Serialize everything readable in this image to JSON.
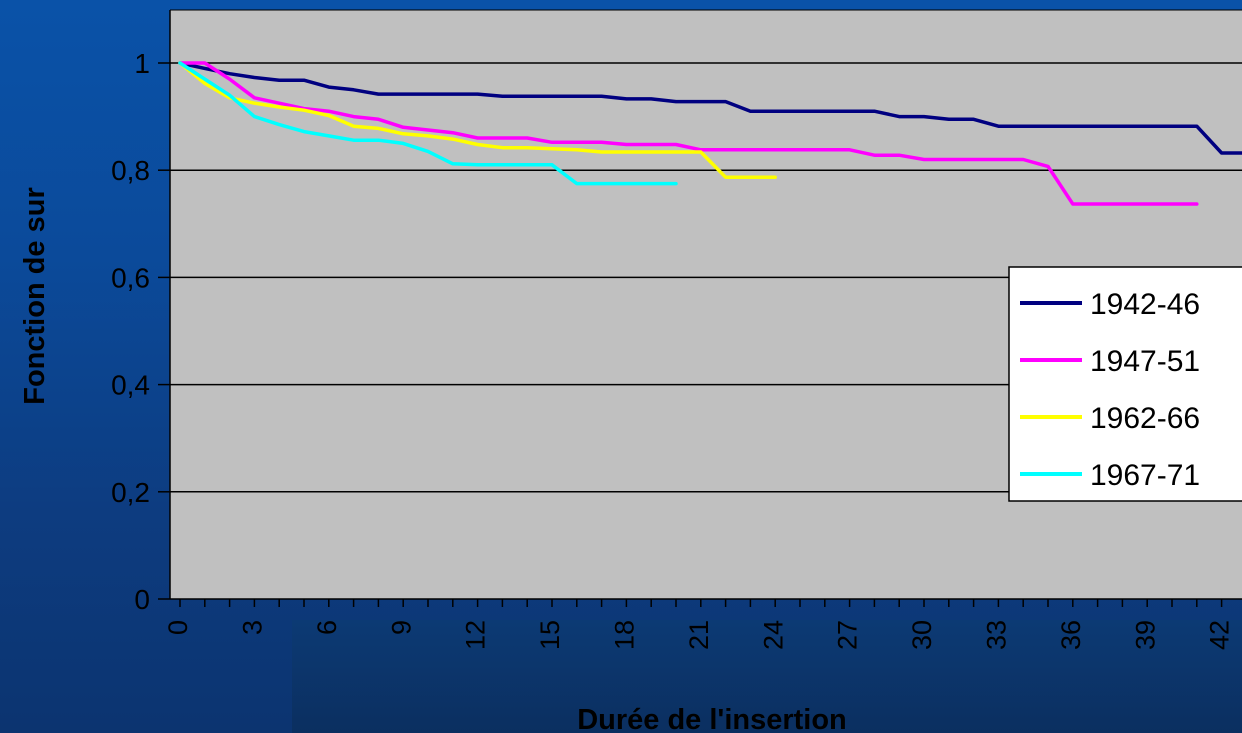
{
  "chart_data": {
    "type": "line",
    "title": "",
    "xlabel": "Durée de l'insertion",
    "ylabel": "Fonction de sur",
    "xlim": [
      0,
      43
    ],
    "ylim": [
      0,
      1
    ],
    "xticks": [
      0,
      3,
      6,
      9,
      12,
      15,
      18,
      21,
      24,
      27,
      30,
      33,
      36,
      39,
      42
    ],
    "xtick_labels": [
      "0",
      "3",
      "6",
      "9",
      "12",
      "15",
      "18",
      "21",
      "24",
      "27",
      "30",
      "33",
      "36",
      "39",
      "42"
    ],
    "yticks": [
      0,
      0.2,
      0.4,
      0.6,
      0.8,
      1
    ],
    "ytick_labels": [
      "0",
      "0,2",
      "0,4",
      "0,6",
      "0,8",
      "1"
    ],
    "grid": "horizontal",
    "background_color": "#c0c0c0",
    "legend_position": "right",
    "series": [
      {
        "name": "1942-46",
        "color": "#000080",
        "x": [
          0,
          1,
          2,
          3,
          4,
          5,
          6,
          7,
          8,
          9,
          10,
          11,
          12,
          13,
          14,
          15,
          16,
          17,
          18,
          19,
          20,
          21,
          22,
          23,
          24,
          25,
          26,
          27,
          28,
          29,
          30,
          31,
          32,
          33,
          34,
          35,
          36,
          37,
          38,
          39,
          40,
          41,
          42,
          43
        ],
        "y": [
          1,
          0.99,
          0.98,
          0.973,
          0.968,
          0.968,
          0.955,
          0.95,
          0.942,
          0.942,
          0.942,
          0.942,
          0.942,
          0.938,
          0.938,
          0.938,
          0.938,
          0.938,
          0.933,
          0.933,
          0.928,
          0.928,
          0.928,
          0.91,
          0.91,
          0.91,
          0.91,
          0.91,
          0.91,
          0.9,
          0.9,
          0.895,
          0.895,
          0.882,
          0.882,
          0.882,
          0.882,
          0.882,
          0.882,
          0.882,
          0.882,
          0.882,
          0.832,
          0.832
        ]
      },
      {
        "name": "1947-51",
        "color": "#ff00ff",
        "x": [
          0,
          1,
          2,
          3,
          4,
          5,
          6,
          7,
          8,
          9,
          10,
          11,
          12,
          13,
          14,
          15,
          16,
          17,
          18,
          19,
          20,
          21,
          22,
          23,
          24,
          25,
          26,
          27,
          28,
          29,
          30,
          31,
          32,
          33,
          34,
          35,
          36,
          37,
          38,
          39,
          40,
          41
        ],
        "y": [
          1,
          1,
          0.97,
          0.935,
          0.925,
          0.915,
          0.91,
          0.9,
          0.895,
          0.88,
          0.875,
          0.87,
          0.86,
          0.86,
          0.86,
          0.852,
          0.852,
          0.852,
          0.848,
          0.848,
          0.848,
          0.838,
          0.838,
          0.838,
          0.838,
          0.838,
          0.838,
          0.838,
          0.828,
          0.828,
          0.82,
          0.82,
          0.82,
          0.82,
          0.82,
          0.807,
          0.737,
          0.737,
          0.737,
          0.737,
          0.737,
          0.737
        ]
      },
      {
        "name": "1962-66",
        "color": "#ffff00",
        "x": [
          0,
          1,
          2,
          3,
          4,
          5,
          6,
          7,
          8,
          9,
          10,
          11,
          12,
          13,
          14,
          15,
          16,
          17,
          18,
          19,
          20,
          21,
          22,
          23,
          24
        ],
        "y": [
          1,
          0.962,
          0.935,
          0.925,
          0.918,
          0.912,
          0.902,
          0.882,
          0.878,
          0.868,
          0.864,
          0.858,
          0.848,
          0.842,
          0.842,
          0.84,
          0.838,
          0.834,
          0.834,
          0.834,
          0.834,
          0.834,
          0.787,
          0.787,
          0.787
        ]
      },
      {
        "name": "1967-71",
        "color": "#00ffff",
        "x": [
          0,
          1,
          2,
          3,
          4,
          5,
          6,
          7,
          8,
          9,
          10,
          11,
          12,
          13,
          14,
          15,
          16,
          17,
          18,
          19,
          20
        ],
        "y": [
          1,
          0.97,
          0.94,
          0.9,
          0.885,
          0.872,
          0.864,
          0.856,
          0.856,
          0.85,
          0.835,
          0.812,
          0.81,
          0.81,
          0.81,
          0.81,
          0.775,
          0.775,
          0.775,
          0.775,
          0.775
        ]
      }
    ]
  }
}
